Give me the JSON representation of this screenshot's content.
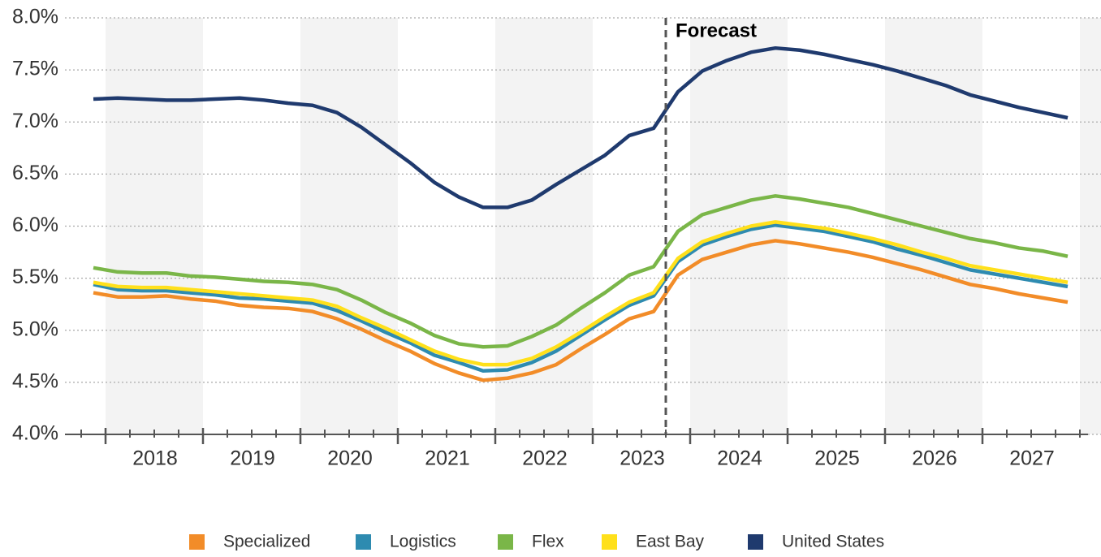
{
  "chart_data": {
    "type": "line",
    "annotation": "Forecast",
    "categories": [
      null,
      null,
      null,
      null,
      null,
      null,
      null,
      null,
      null,
      null,
      null,
      null,
      null,
      null,
      null,
      null,
      null,
      null,
      null,
      null,
      null,
      null,
      null,
      null,
      null,
      null,
      null,
      null,
      null,
      null,
      null,
      null,
      null,
      null,
      null,
      null,
      null,
      null,
      null,
      null,
      null
    ],
    "year_labels": [
      2018,
      2019,
      2020,
      2021,
      2022,
      2023,
      2024,
      2025,
      2026,
      2027
    ],
    "ylim": [
      4,
      8
    ],
    "yticks": [
      {
        "value": 4,
        "label": "4.0%"
      },
      {
        "value": 4.5,
        "label": "4.5%"
      },
      {
        "value": 5,
        "label": "5.0%"
      },
      {
        "value": 5.5,
        "label": "5.5%"
      },
      {
        "value": 6,
        "label": "6.0%"
      },
      {
        "value": 6.5,
        "label": "6.5%"
      },
      {
        "value": 7,
        "label": "7.0%"
      },
      {
        "value": 7.5,
        "label": "7.5%"
      },
      {
        "value": 8,
        "label": "8.0%"
      }
    ],
    "grid": true,
    "legend": "bottom",
    "series": [
      {
        "name": "Specialized",
        "color": "#f28c28",
        "values": [
          5.36,
          5.32,
          5.32,
          5.33,
          5.3,
          5.28,
          5.24,
          5.22,
          5.21,
          5.18,
          5.11,
          5.01,
          4.9,
          4.8,
          4.68,
          4.59,
          4.52,
          4.54,
          4.59,
          4.67,
          4.82,
          4.96,
          5.11,
          5.18,
          5.53,
          5.68,
          5.75,
          5.82,
          5.86,
          5.83,
          5.79,
          5.75,
          5.7,
          5.64,
          5.58,
          5.51,
          5.44,
          5.4,
          5.35,
          5.31,
          5.27
        ]
      },
      {
        "name": "Logistics",
        "color": "#2e8bb0",
        "values": [
          5.44,
          5.39,
          5.38,
          5.38,
          5.36,
          5.34,
          5.31,
          5.3,
          5.28,
          5.26,
          5.19,
          5.09,
          4.98,
          4.88,
          4.76,
          4.69,
          4.61,
          4.62,
          4.69,
          4.8,
          4.95,
          5.1,
          5.24,
          5.33,
          5.66,
          5.82,
          5.9,
          5.97,
          6.01,
          5.98,
          5.95,
          5.9,
          5.85,
          5.78,
          5.72,
          5.65,
          5.58,
          5.54,
          5.5,
          5.46,
          5.42
        ]
      },
      {
        "name": "Flex",
        "color": "#7ab648",
        "values": [
          5.6,
          5.56,
          5.55,
          5.55,
          5.52,
          5.51,
          5.49,
          5.47,
          5.46,
          5.44,
          5.39,
          5.29,
          5.17,
          5.07,
          4.95,
          4.87,
          4.84,
          4.85,
          4.94,
          5.05,
          5.21,
          5.36,
          5.53,
          5.61,
          5.95,
          6.11,
          6.18,
          6.25,
          6.29,
          6.26,
          6.22,
          6.18,
          6.12,
          6.06,
          6.0,
          5.94,
          5.88,
          5.84,
          5.79,
          5.76,
          5.71
        ]
      },
      {
        "name": "East Bay",
        "color": "#ffe01b",
        "values": [
          5.46,
          5.42,
          5.41,
          5.41,
          5.39,
          5.37,
          5.35,
          5.33,
          5.31,
          5.29,
          5.23,
          5.12,
          5.02,
          4.91,
          4.8,
          4.72,
          4.67,
          4.67,
          4.73,
          4.84,
          4.98,
          5.13,
          5.27,
          5.36,
          5.69,
          5.85,
          5.93,
          6.0,
          6.04,
          6.01,
          5.98,
          5.93,
          5.88,
          5.82,
          5.75,
          5.69,
          5.62,
          5.58,
          5.54,
          5.5,
          5.46
        ]
      },
      {
        "name": "United States",
        "color": "#1f3a6e",
        "values": [
          7.22,
          7.23,
          7.22,
          7.21,
          7.21,
          7.22,
          7.23,
          7.21,
          7.18,
          7.16,
          7.09,
          6.95,
          6.78,
          6.61,
          6.42,
          6.28,
          6.18,
          6.18,
          6.25,
          6.4,
          6.54,
          6.68,
          6.87,
          6.94,
          7.29,
          7.49,
          7.59,
          7.67,
          7.71,
          7.69,
          7.65,
          7.6,
          7.55,
          7.49,
          7.42,
          7.35,
          7.26,
          7.2,
          7.14,
          7.09,
          7.04
        ]
      }
    ]
  }
}
